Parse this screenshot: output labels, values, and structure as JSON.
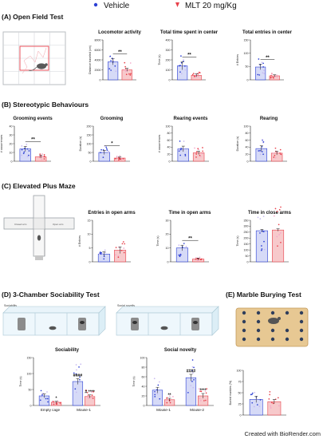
{
  "legend": {
    "vehicle": {
      "label": "Vehicle",
      "color": "#2b3fd4"
    },
    "mlt": {
      "label": "MLT 20 mg/Kg",
      "color": "#e8404a"
    }
  },
  "colors": {
    "vehicle_fill": "#d6daf7",
    "mlt_fill": "#f7c9cb",
    "vehicle_dot": "#2b3fd4",
    "mlt_dot": "#e8404a",
    "vehicle_light": "#c7b9f0",
    "mlt_light": "#f3a7c9"
  },
  "sections": {
    "A": "(A) Open Field Test",
    "B": "(B) Stereotypic Behaviours",
    "C": "(C) Elevated Plus Maze",
    "D": "(D) 3-Chamber Sociability Test",
    "E": "(E) Marble Burying Test"
  },
  "illustrations": {
    "maze_label_left": "Closed arm",
    "maze_label_right": "Open arm",
    "sociability_tag": "Sociability",
    "social_novelty_tag": "Social novelty"
  },
  "credit": "Created with BioRender.com",
  "chart_data": [
    {
      "id": "loco",
      "type": "bar",
      "title": "Locomotor activity",
      "ylabel": "Distance traveled (cm)",
      "ylim": [
        0,
        8000
      ],
      "yticks": [
        0,
        2000,
        4000,
        6000,
        8000
      ],
      "categories": [
        "Vehicle",
        "MLT 20 mg/Kg"
      ],
      "values": [
        3600,
        2000
      ],
      "errors": [
        600,
        300
      ],
      "significance": "**"
    },
    {
      "id": "timecenter",
      "type": "bar",
      "title": "Total time spent in center",
      "ylabel": "Time (s)",
      "ylim": [
        0,
        400
      ],
      "yticks": [
        0,
        100,
        200,
        300,
        400
      ],
      "categories": [
        "Vehicle",
        "MLT 20 mg/Kg"
      ],
      "values": [
        140,
        45
      ],
      "errors": [
        40,
        15
      ],
      "significance": "**"
    },
    {
      "id": "entriescenter",
      "type": "bar",
      "title": "Total entries in center",
      "ylabel": "# Entries",
      "ylim": [
        0,
        150
      ],
      "yticks": [
        0,
        50,
        100,
        150
      ],
      "categories": [
        "Vehicle",
        "MLT 20 mg/Kg"
      ],
      "values": [
        48,
        15
      ],
      "errors": [
        10,
        4
      ],
      "significance": "**"
    },
    {
      "id": "groomev",
      "type": "bar",
      "title": "Grooming events",
      "ylabel": "# occurrences",
      "ylim": [
        0,
        40
      ],
      "yticks": [
        0,
        10,
        20,
        30,
        40
      ],
      "categories": [
        "Vehicle",
        "MLT 20 mg/Kg"
      ],
      "values": [
        14,
        5
      ],
      "errors": [
        3,
        1.5
      ],
      "significance": "**"
    },
    {
      "id": "groom",
      "type": "bar",
      "title": "Grooming",
      "ylabel": "Duration (s)",
      "ylim": [
        0,
        200
      ],
      "yticks": [
        0,
        50,
        100,
        150,
        200
      ],
      "categories": [
        "Vehicle",
        "MLT 20 mg/Kg"
      ],
      "values": [
        50,
        18
      ],
      "errors": [
        12,
        6
      ],
      "significance": "*"
    },
    {
      "id": "rearev",
      "type": "bar",
      "title": "Rearing events",
      "ylabel": "# occurrences",
      "ylim": [
        0,
        100
      ],
      "yticks": [
        0,
        20,
        40,
        60,
        80,
        100
      ],
      "categories": [
        "Vehicle",
        "MLT 20 mg/Kg"
      ],
      "values": [
        35,
        24
      ],
      "errors": [
        8,
        5
      ],
      "significance": ""
    },
    {
      "id": "rear",
      "type": "bar",
      "title": "Rearing",
      "ylabel": "Duration (s)",
      "ylim": [
        0,
        100
      ],
      "yticks": [
        0,
        20,
        40,
        60,
        80,
        100
      ],
      "categories": [
        "Vehicle",
        "MLT 20 mg/Kg"
      ],
      "values": [
        36,
        23
      ],
      "errors": [
        8,
        5
      ],
      "significance": ""
    },
    {
      "id": "entriesopen",
      "type": "bar",
      "title": "Entries in open arms",
      "ylabel": "# Entries",
      "ylim": [
        0,
        15
      ],
      "yticks": [
        0,
        5,
        10,
        15
      ],
      "categories": [
        "Vehicle",
        "MLT 20 mg/Kg"
      ],
      "values": [
        2.8,
        4.2
      ],
      "errors": [
        0.8,
        1.2
      ],
      "significance": ""
    },
    {
      "id": "timeopen",
      "type": "bar",
      "title": "Time in open arms",
      "ylabel": "Time (s)",
      "ylim": [
        0,
        30
      ],
      "yticks": [
        0,
        10,
        20,
        30
      ],
      "categories": [
        "Vehicle",
        "MLT 20 mg/Kg"
      ],
      "values": [
        10,
        2
      ],
      "errors": [
        2,
        0.7
      ],
      "significance": "**"
    },
    {
      "id": "timeclose",
      "type": "bar",
      "title": "Time in close arms",
      "ylabel": "Time (s)",
      "ylim": [
        0,
        350
      ],
      "yticks": [
        0,
        50,
        100,
        150,
        200,
        250,
        300,
        350
      ],
      "categories": [
        "Vehicle",
        "MLT 20 mg/Kg"
      ],
      "values": [
        262,
        268
      ],
      "errors": [
        12,
        10
      ],
      "significance": ""
    },
    {
      "id": "sociability",
      "type": "bar",
      "title": "Sociability",
      "ylabel": "Time (s)",
      "ylim": [
        0,
        150
      ],
      "yticks": [
        0,
        50,
        100,
        150
      ],
      "categories": [
        "Empty cage",
        "Mouse-1"
      ],
      "series": [
        {
          "name": "Vehicle",
          "values": [
            30,
            75
          ],
          "errors": [
            6,
            9
          ]
        },
        {
          "name": "MLT 20 mg/Kg",
          "values": [
            10,
            28
          ],
          "errors": [
            3,
            5
          ]
        }
      ],
      "annotations": [
        {
          "category": "Empty cage",
          "series": "MLT 20 mg/Kg",
          "text": "*"
        },
        {
          "category": "Mouse-1",
          "series": "Vehicle",
          "text": "####"
        },
        {
          "category": "Mouse-1",
          "series": "MLT 20 mg/Kg",
          "text": "# ****"
        }
      ]
    },
    {
      "id": "socialnov",
      "type": "bar",
      "title": "Social novelty",
      "ylabel": "Time (s)",
      "ylim": [
        0,
        100
      ],
      "yticks": [
        0,
        20,
        40,
        60,
        80,
        100
      ],
      "categories": [
        "Mouse-1",
        "Mouse-2"
      ],
      "series": [
        {
          "name": "Vehicle",
          "values": [
            32,
            58
          ],
          "errors": [
            6,
            7
          ]
        },
        {
          "name": "MLT 20 mg/Kg",
          "values": [
            12,
            20
          ],
          "errors": [
            3,
            5
          ]
        }
      ],
      "annotations": [
        {
          "category": "Mouse-1",
          "series": "MLT 20 mg/Kg",
          "text": "**"
        },
        {
          "category": "Mouse-2",
          "series": "Vehicle",
          "text": "####"
        },
        {
          "category": "Mouse-2",
          "series": "MLT 20 mg/Kg",
          "text": "****"
        }
      ]
    },
    {
      "id": "marble",
      "type": "bar",
      "title": "",
      "ylabel": "Buried marbles (%)",
      "ylim": [
        0,
        100
      ],
      "yticks": [
        0,
        25,
        50,
        75,
        100
      ],
      "categories": [
        "Vehicle",
        "MLT 20 mg/Kg"
      ],
      "values": [
        35,
        30
      ],
      "errors": [
        7,
        5
      ],
      "significance": ""
    }
  ]
}
